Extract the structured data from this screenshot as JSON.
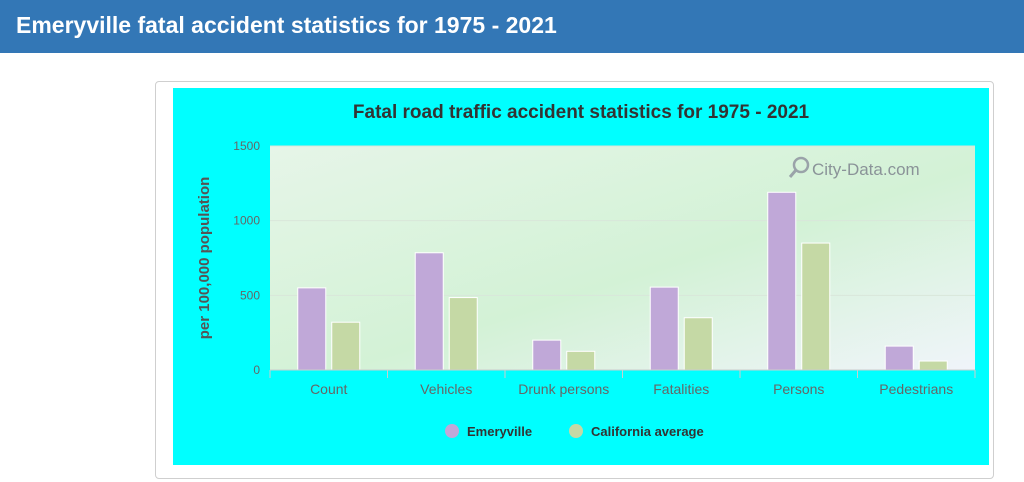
{
  "page": {
    "title": "Emeryville fatal accident statistics for 1975 - 2021"
  },
  "watermark": {
    "text": "City-Data.com",
    "icon": "magnifier-logo-icon"
  },
  "colors": {
    "header": "#3377b6",
    "panel": "#00ffff",
    "emeryville": "#c0a8d8",
    "california": "#c5d9a5"
  },
  "chart_data": {
    "type": "bar",
    "title": "Fatal road traffic accident statistics for 1975 - 2021",
    "xlabel": "",
    "ylabel": "per 100,000 population",
    "categories": [
      "Count",
      "Vehicles",
      "Drunk persons",
      "Fatalities",
      "Persons",
      "Pedestrians"
    ],
    "series": [
      {
        "name": "Emeryville",
        "color": "#c0a8d8",
        "values": [
          550,
          785,
          200,
          555,
          1190,
          160
        ]
      },
      {
        "name": "California average",
        "color": "#c5d9a5",
        "values": [
          320,
          485,
          125,
          350,
          850,
          60
        ]
      }
    ],
    "ylim": [
      0,
      1500
    ],
    "yticks": [
      0,
      500,
      1000,
      1500
    ],
    "grid": true,
    "legend_position": "bottom"
  }
}
